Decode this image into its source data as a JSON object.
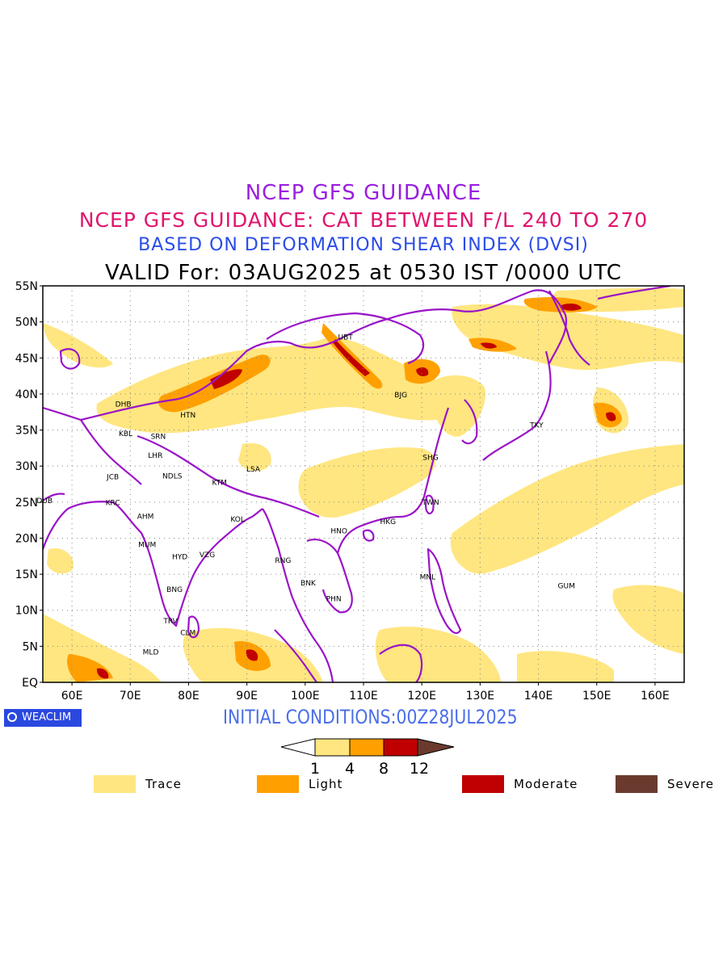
{
  "titles": {
    "line1": "NCEP GFS GUIDANCE",
    "line2": "NCEP GFS GUIDANCE: CAT BETWEEN F/L 240 TO 270",
    "line3": "BASED ON DEFORMATION SHEAR INDEX (DVSI)",
    "line4": "VALID For: 03AUG2025 at 0530 IST /0000 UTC"
  },
  "axes": {
    "lat_labels": [
      "55N",
      "50N",
      "45N",
      "40N",
      "35N",
      "30N",
      "25N",
      "20N",
      "15N",
      "10N",
      "5N",
      "EQ"
    ],
    "lon_labels": [
      "60E",
      "70E",
      "80E",
      "90E",
      "100E",
      "110E",
      "120E",
      "130E",
      "140E",
      "150E",
      "160E"
    ],
    "lon_range": [
      55,
      165
    ],
    "lat_range": [
      0,
      55
    ]
  },
  "cities": [
    {
      "name": "UBT",
      "lon": 106.9,
      "lat": 47.9
    },
    {
      "name": "BJG",
      "lon": 116.4,
      "lat": 39.9
    },
    {
      "name": "DHB",
      "lon": 68.8,
      "lat": 38.6
    },
    {
      "name": "HTN",
      "lon": 79.9,
      "lat": 37.1
    },
    {
      "name": "KBL",
      "lon": 69.2,
      "lat": 34.5
    },
    {
      "name": "SRN",
      "lon": 74.8,
      "lat": 34.1
    },
    {
      "name": "LHR",
      "lon": 74.3,
      "lat": 31.5
    },
    {
      "name": "TKY",
      "lon": 139.7,
      "lat": 35.7
    },
    {
      "name": "SHG",
      "lon": 121.5,
      "lat": 31.2
    },
    {
      "name": "LSA",
      "lon": 91.1,
      "lat": 29.6
    },
    {
      "name": "JCB",
      "lon": 67.0,
      "lat": 28.5
    },
    {
      "name": "NDLS",
      "lon": 77.2,
      "lat": 28.6
    },
    {
      "name": "KTM",
      "lon": 85.3,
      "lat": 27.7
    },
    {
      "name": "DUB",
      "lon": 55.3,
      "lat": 25.2
    },
    {
      "name": "KRC",
      "lon": 67.0,
      "lat": 24.9
    },
    {
      "name": "TWN",
      "lon": 121.5,
      "lat": 25.0
    },
    {
      "name": "AHM",
      "lon": 72.6,
      "lat": 23.0
    },
    {
      "name": "KOL",
      "lon": 88.4,
      "lat": 22.6
    },
    {
      "name": "HKG",
      "lon": 114.2,
      "lat": 22.3
    },
    {
      "name": "HNO",
      "lon": 105.8,
      "lat": 21.0
    },
    {
      "name": "MUM",
      "lon": 72.9,
      "lat": 19.1
    },
    {
      "name": "HYD",
      "lon": 78.5,
      "lat": 17.4
    },
    {
      "name": "VZG",
      "lon": 83.2,
      "lat": 17.7
    },
    {
      "name": "RNG",
      "lon": 96.2,
      "lat": 16.9
    },
    {
      "name": "MNL",
      "lon": 121.0,
      "lat": 14.6
    },
    {
      "name": "BNK",
      "lon": 100.5,
      "lat": 13.8
    },
    {
      "name": "GUM",
      "lon": 144.8,
      "lat": 13.4
    },
    {
      "name": "BNG",
      "lon": 77.6,
      "lat": 12.9
    },
    {
      "name": "PHN",
      "lon": 104.9,
      "lat": 11.6
    },
    {
      "name": "TRV",
      "lon": 76.9,
      "lat": 8.5
    },
    {
      "name": "CLM",
      "lon": 79.9,
      "lat": 6.9
    },
    {
      "name": "MLD",
      "lon": 73.5,
      "lat": 4.2
    }
  ],
  "badge": {
    "text": "WEACLIM",
    "icon": "circle-logo-icon"
  },
  "initial_conditions": "INITIAL CONDITIONS:00Z28JUL2025",
  "colorbar": {
    "ticks": [
      "1",
      "4",
      "8",
      "12"
    ],
    "colors": [
      "#ffffff",
      "#ffe680",
      "#ffa000",
      "#c00000",
      "#6b3a2e"
    ]
  },
  "legend": [
    {
      "label": "Trace",
      "color": "#ffe680"
    },
    {
      "label": "Light",
      "color": "#ffa000"
    },
    {
      "label": "Moderate",
      "color": "#c00000"
    },
    {
      "label": "Severe",
      "color": "#6b3a2e"
    }
  ],
  "colors": {
    "coastline": "#9a14c8",
    "trace": "#ffe680",
    "light": "#ffa000",
    "moderate": "#c00000",
    "severe": "#6b3a2e"
  }
}
